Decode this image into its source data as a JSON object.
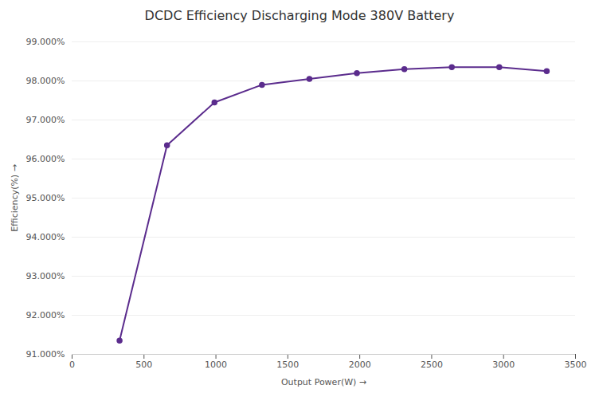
{
  "chart_data": {
    "type": "line",
    "title": "DCDC Efficiency Discharging Mode 380V Battery",
    "xlabel": "Output Power(W)",
    "ylabel": "Efficiency(%)",
    "x": [
      330,
      660,
      990,
      1320,
      1650,
      1980,
      2310,
      2640,
      2970,
      3300
    ],
    "values": [
      0.9135,
      0.9635,
      0.9745,
      0.979,
      0.9805,
      0.982,
      0.983,
      0.9835,
      0.9835,
      0.9825
    ],
    "color": "#5B2C8D",
    "marker": "circle",
    "xlim": [
      0,
      3500
    ],
    "xticks": [
      0,
      500,
      1000,
      1500,
      2000,
      2500,
      3000,
      3500
    ],
    "ylim": [
      0.91,
      0.99
    ],
    "yticks": [
      {
        "value": 0.91,
        "label": "91.000%"
      },
      {
        "value": 0.92,
        "label": "92.000%"
      },
      {
        "value": 0.93,
        "label": "93.000%"
      },
      {
        "value": 0.94,
        "label": "94.000%"
      },
      {
        "value": 0.95,
        "label": "95.000%"
      },
      {
        "value": 0.96,
        "label": "96.000%"
      },
      {
        "value": 0.97,
        "label": "97.000%"
      },
      {
        "value": 0.98,
        "label": "98.000%"
      },
      {
        "value": 0.99,
        "label": "99.000%"
      }
    ],
    "grid": true
  }
}
